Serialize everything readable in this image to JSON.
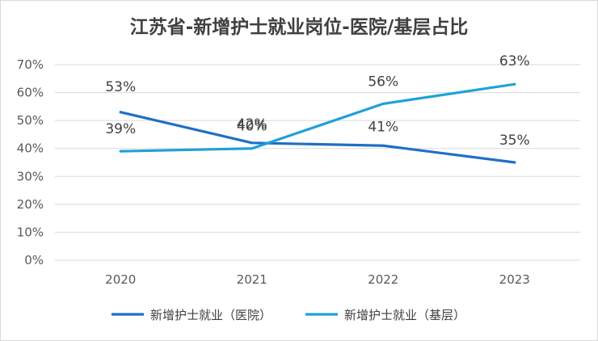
{
  "chart_data": {
    "type": "line",
    "title": "江苏省-新增护士就业岗位-医院/基层占比",
    "categories": [
      "2020",
      "2021",
      "2022",
      "2023"
    ],
    "ylim": [
      0,
      70
    ],
    "yticks": [
      "0%",
      "10%",
      "20%",
      "30%",
      "40%",
      "50%",
      "60%",
      "70%"
    ],
    "grid": true,
    "legend_position": "bottom",
    "series": [
      {
        "name": "新增护士就业（医院）",
        "values": [
          53,
          42,
          41,
          35
        ],
        "labels": [
          "53%",
          "42%",
          "41%",
          "35%"
        ],
        "color": "#1f6fc5"
      },
      {
        "name": "新增护士就业（基层）",
        "values": [
          39,
          40,
          56,
          63
        ],
        "labels": [
          "39%",
          "40%",
          "56%",
          "63%"
        ],
        "color": "#1ea1d8"
      }
    ]
  }
}
